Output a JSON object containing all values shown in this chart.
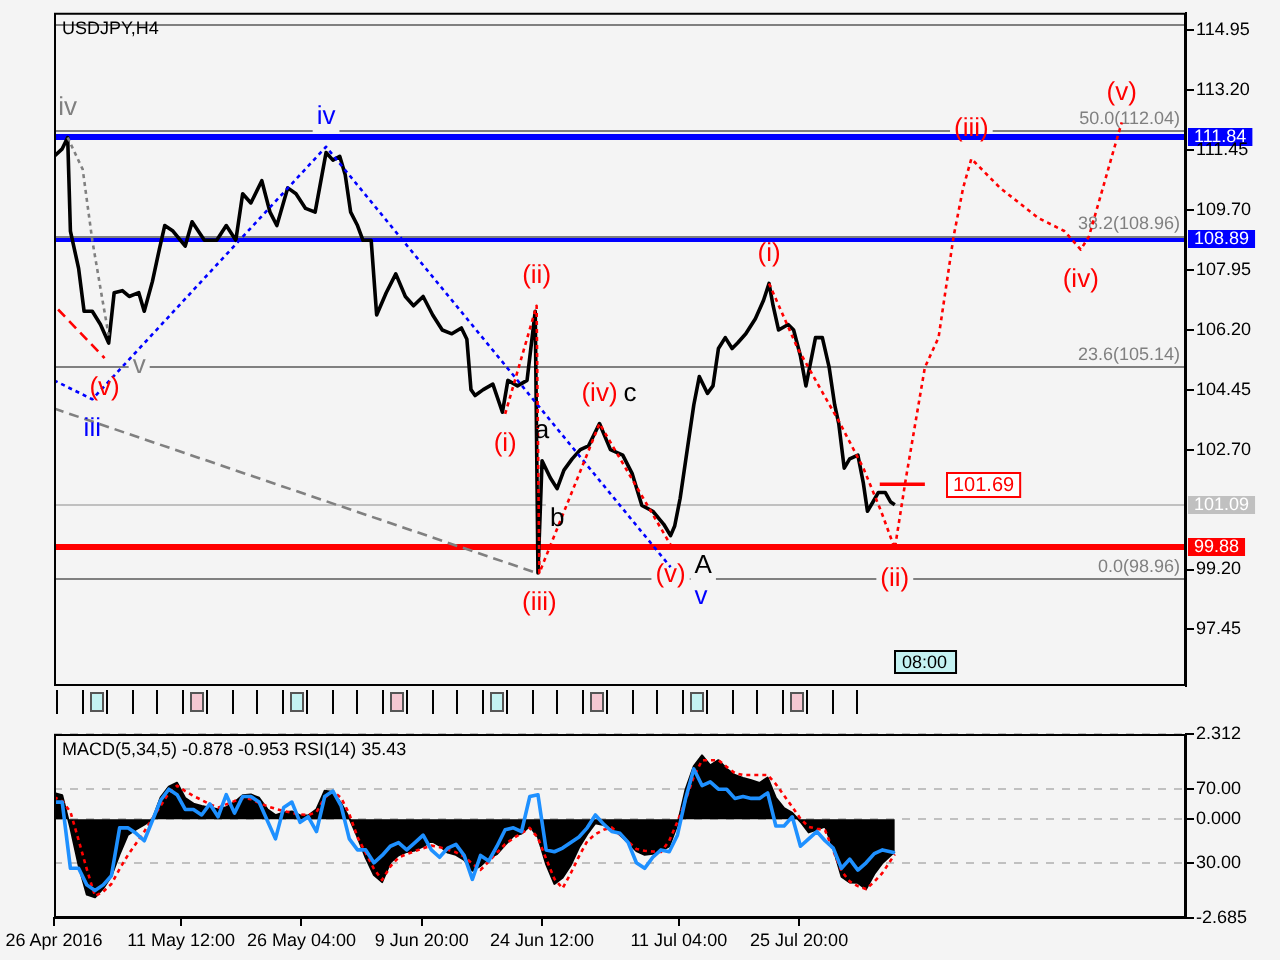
{
  "chart_data": [
    {
      "type": "line",
      "title": "USDJPY,H4",
      "xlim": [
        "2016-04-26T00:00",
        "2016-09-11T00:00"
      ],
      "ylim": [
        95.8,
        115.45
      ],
      "yticks": [
        97.45,
        {
          "value": 99.2,
          "label": "99.20"
        },
        {
          "value": 102.7,
          "label": "102.70"
        },
        104.45,
        {
          "value": 106.2,
          "label": "106.20"
        },
        107.95,
        {
          "value": 109.7,
          "label": "109.70"
        },
        111.45,
        {
          "value": 113.2,
          "label": "113.20"
        },
        114.95
      ],
      "tick_labels": "y",
      "series": [
        {
          "color": "#000000",
          "x": [
            "2016-04-26T00:00",
            "2016-04-27T00:00",
            "2016-04-27T16:00",
            "2016-04-28T00:00",
            "2016-04-29T00:00",
            "2016-04-29T16:00",
            "2016-04-30T16:00",
            "2016-05-01T16:00",
            "2016-05-02T16:00",
            "2016-05-03T08:00",
            "2016-05-04T08:00",
            "2016-05-05T04:00",
            "2016-05-06T08:00",
            "2016-05-07T00:00",
            "2016-05-08T00:00",
            "2016-05-08T20:00",
            "2016-05-09T12:00",
            "2016-05-10T12:00",
            "2016-05-12T00:00",
            "2016-05-12T20:00",
            "2016-05-14T08:00",
            "2016-05-15T20:00",
            "2016-05-17T00:00",
            "2016-05-18T04:00",
            "2016-05-19T00:00",
            "2016-05-20T00:00",
            "2016-05-21T08:00",
            "2016-05-22T08:00",
            "2016-05-23T04:00",
            "2016-05-24T12:00",
            "2016-05-25T12:00",
            "2016-05-26T16:00",
            "2016-05-27T20:00",
            "2016-05-29T04:00",
            "2016-05-30T00:00",
            "2016-05-30T20:00",
            "2016-05-31T12:00",
            "2016-06-01T04:00",
            "2016-06-02T00:00",
            "2016-06-02T16:00",
            "2016-06-03T16:00",
            "2016-06-04T08:00",
            "2016-06-05T12:00",
            "2016-06-06T16:00",
            "2016-06-07T20:00",
            "2016-06-08T20:00",
            "2016-06-10T00:00",
            "2016-06-11T04:00",
            "2016-06-12T08:00",
            "2016-06-13T12:00",
            "2016-06-14T16:00",
            "2016-06-15T08:00",
            "2016-06-15T20:00",
            "2016-06-16T08:00",
            "2016-06-17T08:00",
            "2016-06-18T12:00",
            "2016-06-19T16:00",
            "2016-06-20T08:00",
            "2016-06-21T12:00",
            "2016-06-22T16:00",
            "2016-06-23T16:00",
            "2016-06-24T00:00",
            "2016-06-24T12:00",
            "2016-06-25T12:00",
            "2016-06-26T08:00",
            "2016-06-27T04:00",
            "2016-06-28T04:00",
            "2016-06-29T04:00",
            "2016-06-30T04:00",
            "2016-07-01T12:00",
            "2016-07-02T20:00",
            "2016-07-04T08:00",
            "2016-07-05T12:00",
            "2016-07-06T16:00",
            "2016-07-08T00:00",
            "2016-07-09T08:00",
            "2016-07-10T04:00",
            "2016-07-10T16:00",
            "2016-07-11T08:00",
            "2016-07-12T08:00",
            "2016-07-13T00:00",
            "2016-07-13T16:00",
            "2016-07-14T16:00",
            "2016-07-15T08:00",
            "2016-07-16T00:00",
            "2016-07-16T20:00",
            "2016-07-17T16:00",
            "2016-07-18T08:00",
            "2016-07-19T08:00",
            "2016-07-20T12:00",
            "2016-07-21T12:00",
            "2016-07-22T04:00",
            "2016-07-22T16:00",
            "2016-07-23T08:00",
            "2016-07-24T12:00",
            "2016-07-25T04:00",
            "2016-07-26T00:00",
            "2016-07-26T16:00",
            "2016-07-27T20:00",
            "2016-07-28T16:00",
            "2016-07-29T12:00",
            "2016-07-30T04:00",
            "2016-07-30T16:00",
            "2016-07-31T08:00",
            "2016-08-01T00:00",
            "2016-08-02T00:00",
            "2016-08-02T16:00",
            "2016-08-03T04:00",
            "2016-08-03T20:00",
            "2016-08-04T12:00",
            "2016-08-05T08:00",
            "2016-08-06T00:00",
            "2016-08-06T12:00"
          ],
          "values": [
            111.26,
            111.48,
            111.81,
            109.08,
            107.99,
            106.74,
            106.74,
            106.35,
            105.81,
            107.28,
            107.34,
            107.17,
            107.28,
            106.74,
            107.61,
            108.54,
            109.24,
            109.08,
            108.64,
            109.35,
            108.81,
            108.81,
            109.24,
            108.81,
            110.17,
            109.9,
            110.55,
            109.63,
            109.24,
            110.34,
            110.17,
            109.74,
            109.63,
            111.37,
            111.15,
            111.26,
            110.72,
            109.63,
            109.24,
            108.81,
            108.81,
            106.63,
            107.28,
            107.83,
            107.17,
            106.9,
            107.17,
            106.63,
            106.19,
            106.08,
            106.25,
            105.92,
            104.45,
            104.28,
            104.45,
            104.61,
            103.79,
            104.72,
            104.56,
            104.72,
            106.74,
            99.1,
            102.37,
            101.88,
            101.56,
            102.1,
            102.43,
            102.7,
            102.81,
            103.46,
            102.7,
            102.54,
            101.99,
            101.07,
            100.9,
            100.52,
            100.19,
            100.47,
            101.28,
            102.92,
            104.01,
            104.83,
            104.34,
            104.56,
            105.65,
            105.97,
            105.65,
            105.81,
            106.08,
            106.52,
            107.06,
            107.55,
            106.9,
            106.19,
            106.35,
            106.19,
            105.43,
            104.56,
            105.97,
            105.97,
            105.1,
            104.01,
            103.46,
            102.16,
            102.43,
            102.54,
            101.72,
            100.9,
            101.17,
            101.45,
            101.45,
            101.17,
            101.09
          ],
          "value_labels": [
            null,
            null,
            null,
            null,
            null,
            null,
            null,
            null,
            null,
            null,
            null,
            null,
            null,
            null,
            null,
            null,
            null,
            null,
            null,
            null,
            null,
            null,
            null,
            null,
            null,
            null,
            null,
            null,
            null,
            null,
            null,
            null,
            null,
            null,
            null,
            null,
            null,
            null,
            null,
            null,
            null,
            null,
            null,
            null,
            null,
            null,
            null,
            null,
            null,
            null,
            null,
            null,
            null,
            null,
            null,
            null,
            null,
            null,
            null,
            null,
            null,
            null,
            "a",
            null,
            "b",
            null,
            null,
            null,
            null,
            "c",
            null,
            null,
            null,
            null,
            null,
            null,
            "A",
            null,
            null,
            null,
            null,
            null,
            null,
            null,
            null,
            null,
            null,
            null,
            null,
            null,
            null,
            null,
            null,
            null,
            null,
            null,
            null,
            null,
            null,
            null,
            null,
            null,
            null,
            null,
            null,
            null,
            null,
            null,
            null,
            null,
            null,
            null,
            null
          ]
        },
        {
          "color": "#0000ff",
          "line_style": "dotted",
          "x": [
            "2016-04-26T00:00",
            "2016-04-30T16:00",
            "2016-05-29T04:00",
            "2016-07-10T04:00"
          ],
          "values": [
            104.72,
            104.17,
            111.54,
            99.27
          ],
          "value_labels": [
            null,
            "iii",
            "iv",
            "v"
          ]
        },
        {
          "color": "#808080",
          "line_style": "dotted",
          "x": [
            "2016-04-27T16:00",
            "2016-04-29T12:00",
            "2016-04-30T16:00",
            "2016-05-01T20:00",
            "2016-05-02T16:00"
          ],
          "values": [
            111.81,
            110.88,
            108.81,
            107.17,
            106.03
          ],
          "value_labels": [
            "iv",
            null,
            null,
            null,
            "v"
          ]
        },
        {
          "color": "#808080",
          "line_style": "dashed",
          "x": [
            "2016-04-26T00:00",
            "2016-06-23T20:00"
          ],
          "values": [
            103.9,
            99.1
          ]
        },
        {
          "color": "#ff0000",
          "line_style": "dashed",
          "x": [
            "2016-04-26T12:00",
            "2016-05-02T04:00"
          ],
          "values": [
            106.79,
            105.37
          ],
          "value_labels": [
            null,
            "(v)"
          ]
        },
        {
          "color": "#ff0000",
          "line_style": "dotted",
          "x": [
            "2016-06-20T00:00",
            "2016-06-23T20:00",
            "2016-06-24T04:00",
            "2016-07-01T12:00",
            "2016-07-10T04:00"
          ],
          "values": [
            103.74,
            106.9,
            99.1,
            103.46,
            99.92
          ],
          "value_labels": [
            "(i)",
            "(ii)",
            "(iii)",
            "(iv)",
            "(v)"
          ]
        },
        {
          "color": "#ff0000",
          "line_style": "dotted",
          "x": [
            "2016-07-22T04:00",
            "2016-07-25T16:00",
            "2016-07-30T20:00",
            "2016-08-02T16:00",
            "2016-08-04T20:00",
            "2016-08-06T12:00",
            "2016-08-07T20:00",
            "2016-08-10T04:00",
            "2016-08-11T20:00",
            "2016-08-13T16:00",
            "2016-08-14T20:00",
            "2016-08-15T20:00",
            "2016-08-19T08:00",
            "2016-08-24T00:00",
            "2016-08-27T04:00",
            "2016-08-29T04:00",
            "2016-08-30T04:00",
            "2016-08-31T16:00",
            "2016-09-02T04:00",
            "2016-09-03T04:00"
          ],
          "values": [
            107.55,
            105.65,
            103.46,
            102.16,
            100.9,
            99.81,
            101.83,
            105.1,
            105.97,
            108.92,
            110.34,
            111.19,
            110.34,
            109.46,
            109.08,
            108.54,
            108.92,
            110.17,
            111.43,
            112.25
          ],
          "value_labels": [
            "(i)",
            null,
            null,
            null,
            null,
            "(ii)",
            null,
            null,
            null,
            null,
            null,
            "(iii)",
            null,
            null,
            null,
            "(iv)",
            null,
            null,
            null,
            "(v)"
          ]
        },
        {
          "color": "#ff0000",
          "x": [
            "2016-08-04T16:00",
            "2016-08-10T04:00"
          ],
          "values": [
            101.69,
            101.69
          ],
          "value_labels": [
            null,
            "101.69"
          ]
        }
      ],
      "ref_lines": [
        {
          "axis": "y",
          "value": 115.13,
          "color": "#808080"
        },
        {
          "axis": "y",
          "value": 112.04,
          "color": "#808080",
          "label": "50.0(112.04)"
        },
        {
          "axis": "y",
          "value": 111.84,
          "color": "#0000ff",
          "label": "111.84"
        },
        {
          "axis": "y",
          "value": 108.96,
          "color": "#808080",
          "label": "38.2(108.96)"
        },
        {
          "axis": "y",
          "value": 108.89,
          "color": "#0000ff",
          "label": "108.89"
        },
        {
          "axis": "y",
          "value": 105.14,
          "color": "#808080",
          "label": "23.6(105.14)"
        },
        {
          "axis": "y",
          "value": 101.09,
          "color": "#c0c0c0",
          "label": "101.09"
        },
        {
          "axis": "y",
          "value": 99.88,
          "color": "#ff0000",
          "label": "99.88"
        },
        {
          "axis": "y",
          "value": 98.96,
          "color": "#808080",
          "label": "0.0(98.96)"
        }
      ],
      "annotations": [
        "08:00"
      ]
    },
    {
      "type": "line",
      "title": "MACD(5,34,5) -0.878 -0.953 RSI(14) 35.43",
      "x": [
        "2016-04-26",
        "2016-04-27",
        "2016-04-28",
        "2016-04-29",
        "2016-04-30",
        "2016-05-01",
        "2016-05-02",
        "2016-05-03",
        "2016-05-04",
        "2016-05-05",
        "2016-05-06",
        "2016-05-07",
        "2016-05-08",
        "2016-05-09",
        "2016-05-10",
        "2016-05-11",
        "2016-05-12",
        "2016-05-13",
        "2016-05-14",
        "2016-05-15",
        "2016-05-16",
        "2016-05-17",
        "2016-05-18",
        "2016-05-19",
        "2016-05-20",
        "2016-05-21",
        "2016-05-22",
        "2016-05-23",
        "2016-05-24",
        "2016-05-25",
        "2016-05-26",
        "2016-05-27",
        "2016-05-28",
        "2016-05-29",
        "2016-05-30",
        "2016-05-31",
        "2016-06-01",
        "2016-06-02",
        "2016-06-03",
        "2016-06-04",
        "2016-06-05",
        "2016-06-06",
        "2016-06-07",
        "2016-06-08",
        "2016-06-09",
        "2016-06-10",
        "2016-06-11",
        "2016-06-12",
        "2016-06-13",
        "2016-06-14",
        "2016-06-15",
        "2016-06-16",
        "2016-06-17",
        "2016-06-18",
        "2016-06-19",
        "2016-06-20",
        "2016-06-21",
        "2016-06-22",
        "2016-06-23",
        "2016-06-24",
        "2016-06-25",
        "2016-06-26",
        "2016-06-27",
        "2016-06-28",
        "2016-06-29",
        "2016-06-30",
        "2016-07-01",
        "2016-07-02",
        "2016-07-03",
        "2016-07-04",
        "2016-07-05",
        "2016-07-06",
        "2016-07-07",
        "2016-07-08",
        "2016-07-09",
        "2016-07-10",
        "2016-07-11",
        "2016-07-12",
        "2016-07-13",
        "2016-07-14",
        "2016-07-15",
        "2016-07-16",
        "2016-07-17",
        "2016-07-18",
        "2016-07-19",
        "2016-07-20",
        "2016-07-21",
        "2016-07-22",
        "2016-07-23",
        "2016-07-24",
        "2016-07-25",
        "2016-07-26",
        "2016-07-27",
        "2016-07-28",
        "2016-07-29",
        "2016-07-30",
        "2016-07-31",
        "2016-08-01",
        "2016-08-02",
        "2016-08-03",
        "2016-08-04",
        "2016-08-05",
        "2016-08-06T12:00"
      ],
      "xlim": [
        "2016-04-26T00:00",
        "2016-09-11T00:00"
      ],
      "xticks": [
        {
          "value": "2016-04-26T00:00",
          "label": "26 Apr 2016"
        },
        {
          "value": "2016-05-11T12:00",
          "label": "11 May 12:00"
        },
        {
          "value": "2016-05-26T04:00",
          "label": "26 May 04:00"
        },
        {
          "value": "2016-06-09T20:00",
          "label": "9 Jun 20:00"
        },
        {
          "value": "2016-06-24T12:00",
          "label": "24 Jun 12:00"
        },
        {
          "value": "2016-07-11T04:00",
          "label": "11 Jul 04:00"
        },
        {
          "value": "2016-07-25T20:00",
          "label": "25 Jul 20:00"
        }
      ],
      "ylim": [
        -2.685,
        2.312
      ],
      "yticks": [
        2.312,
        {
          "value": 0,
          "label": "0.000"
        },
        -2.685
      ],
      "y2lim": [
        0,
        100
      ],
      "y2ticks": [
        {
          "value": 70,
          "label": "70.00"
        },
        {
          "value": 30,
          "label": "30.00"
        }
      ],
      "grid": "y",
      "series": [
        {
          "type": "area",
          "color": "#000000",
          "values": [
            0.71,
            0.65,
            -0.24,
            -1.25,
            -2.05,
            -2.12,
            -1.88,
            -1.54,
            -0.95,
            -0.43,
            -0.28,
            -0.15,
            -0.01,
            0.59,
            0.88,
            0.99,
            0.57,
            0.42,
            0.36,
            0.31,
            0.27,
            0.32,
            0.46,
            0.65,
            0.67,
            0.58,
            0.27,
            0.11,
            0.18,
            0.21,
            0.1,
            0.1,
            0.27,
            0.77,
            0.74,
            0.43,
            0.03,
            -0.49,
            -1.05,
            -1.52,
            -1.71,
            -1.18,
            -0.98,
            -0.89,
            -0.85,
            -0.74,
            -0.59,
            -0.72,
            -0.91,
            -0.97,
            -1.11,
            -1.4,
            -1.27,
            -1.06,
            -0.95,
            -0.7,
            -0.46,
            -0.39,
            -0.19,
            -0.49,
            -1.23,
            -1.76,
            -1.59,
            -1.25,
            -0.77,
            -0.41,
            -0.11,
            -0.16,
            -0.23,
            -0.43,
            -0.64,
            -0.87,
            -0.97,
            -0.94,
            -0.86,
            -0.74,
            -0.15,
            0.81,
            1.44,
            1.73,
            1.46,
            1.6,
            1.37,
            1.2,
            1.12,
            1.06,
            0.98,
            1.13,
            0.58,
            0.3,
            0.17,
            -0.07,
            -0.36,
            -0.28,
            -0.2,
            -0.8,
            -1.56,
            -1.72,
            -1.73,
            -1.9,
            -1.49,
            -1.19,
            -0.878
          ]
        },
        {
          "color": "#ff0000",
          "line_style": "dotted",
          "values": [
            0.6,
            0.49,
            0.2,
            -0.57,
            -1.36,
            -2.09,
            -1.97,
            -1.76,
            -1.35,
            -0.98,
            -0.66,
            -0.34,
            0.02,
            0.36,
            0.71,
            0.91,
            0.76,
            0.63,
            0.52,
            0.4,
            0.31,
            0.4,
            0.49,
            0.57,
            0.54,
            0.44,
            0.35,
            0.28,
            0.22,
            0.17,
            0.13,
            0.11,
            0.19,
            0.58,
            0.76,
            0.58,
            0.14,
            -0.49,
            -0.92,
            -1.35,
            -1.65,
            -1.29,
            -1.04,
            -0.95,
            -0.87,
            -0.79,
            -0.72,
            -0.76,
            -0.83,
            -0.9,
            -1.02,
            -1.21,
            -1.38,
            -1.15,
            -0.91,
            -0.68,
            -0.52,
            -0.38,
            -0.24,
            -0.51,
            -1.08,
            -1.62,
            -1.88,
            -1.47,
            -1.01,
            -0.6,
            -0.41,
            -0.29,
            -0.23,
            -0.42,
            -0.61,
            -0.81,
            -0.86,
            -0.88,
            -0.89,
            -0.59,
            -0.07,
            0.51,
            1.15,
            1.6,
            1.6,
            1.6,
            1.42,
            1.25,
            1.2,
            1.2,
            1.2,
            1.2,
            0.95,
            0.64,
            0.33,
            0.01,
            -0.21,
            -0.26,
            -0.3,
            -0.86,
            -1.41,
            -1.69,
            -1.82,
            -1.9,
            -1.7,
            -1.46,
            -0.953
          ]
        },
        {
          "color": "#1e90ff",
          "axis": "y2",
          "values": [
            63,
            63,
            27,
            27,
            18,
            15,
            18,
            23,
            49,
            49,
            46,
            42,
            53,
            64,
            70,
            67,
            59,
            59,
            56,
            62,
            55,
            67,
            57,
            66,
            66,
            63,
            53,
            43,
            60,
            63,
            52,
            55,
            47,
            66,
            69,
            61,
            43,
            37,
            37,
            30,
            34,
            39,
            41,
            37,
            41,
            45,
            37,
            33,
            38,
            40,
            34,
            21,
            34,
            31,
            39,
            48,
            49,
            47,
            66,
            67,
            37,
            36,
            38,
            41,
            44,
            49,
            56,
            51,
            47,
            46,
            41,
            30,
            27,
            33,
            37,
            36,
            45,
            65,
            81,
            72,
            74,
            70,
            70,
            65,
            66,
            65,
            65,
            68,
            50,
            50,
            55,
            39,
            43,
            47,
            42,
            38,
            27,
            32,
            26,
            30,
            35,
            37,
            35.43
          ]
        }
      ]
    }
  ]
}
